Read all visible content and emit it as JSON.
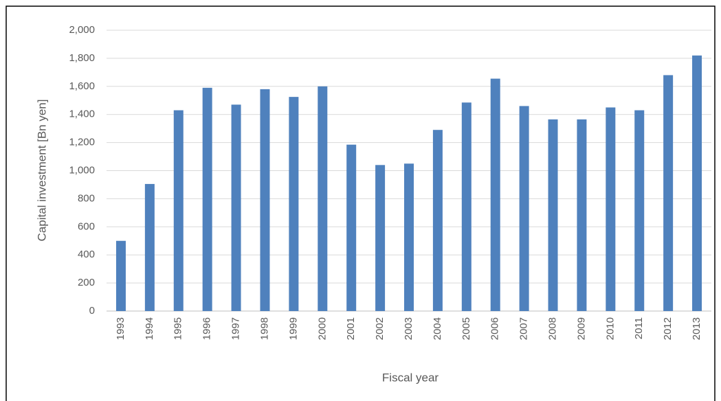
{
  "chart_data": {
    "type": "bar",
    "x_label": "Fiscal year",
    "y_label": "Capital investment  [Bn yen]",
    "categories": [
      "1993",
      "1994",
      "1995",
      "1996",
      "1997",
      "1998",
      "1999",
      "2000",
      "2001",
      "2002",
      "2003",
      "2004",
      "2005",
      "2006",
      "2007",
      "2008",
      "2009",
      "2010",
      "2011",
      "2012",
      "2013"
    ],
    "values": [
      500,
      905,
      1430,
      1590,
      1470,
      1580,
      1525,
      1600,
      1185,
      1040,
      1050,
      1290,
      1485,
      1655,
      1460,
      1365,
      1365,
      1450,
      1430,
      1680,
      1820
    ],
    "color": "#4f81bd",
    "ylim": [
      0,
      2000
    ],
    "yticks": [
      0,
      200,
      400,
      600,
      800,
      {
        "value": 1000,
        "label": "1,000"
      },
      {
        "value": 1200,
        "label": "1,200"
      },
      {
        "value": 1400,
        "label": "1,400"
      },
      {
        "value": 1600,
        "label": "1,600"
      },
      {
        "value": 1800,
        "label": "1,800"
      },
      {
        "value": 2000,
        "label": "2,000"
      }
    ],
    "grid": true
  }
}
